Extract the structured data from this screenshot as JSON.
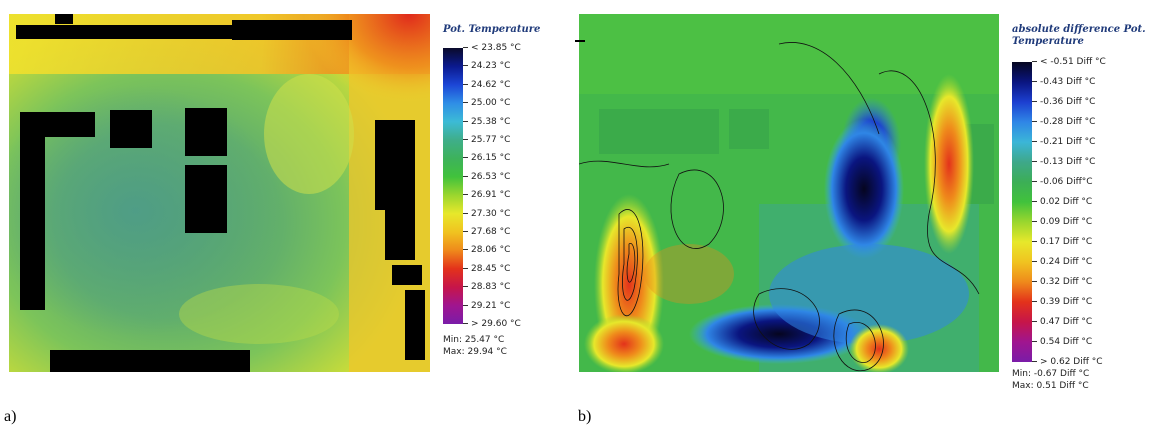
{
  "panel_a": {
    "legend_title": "Pot. Temperature",
    "ticks": [
      "< 23.85 °C",
      "24.23 °C",
      "24.62 °C",
      "25.00 °C",
      "25.38 °C",
      "25.77 °C",
      "26.15 °C",
      "26.53 °C",
      "26.91 °C",
      "27.30 °C",
      "27.68 °C",
      "28.06 °C",
      "28.45 °C",
      "28.83 °C",
      "29.21 °C",
      "> 29.60 °C"
    ],
    "min_label": "Min: 25.47 °C",
    "max_label": "Max: 29.94 °C",
    "caption": "a)",
    "scale_colors": [
      "#0a0a2a",
      "#0b1a8f",
      "#1c46d6",
      "#2f8ee6",
      "#3cbbd6",
      "#3fae8a",
      "#3db25b",
      "#41c23c",
      "#9ad62e",
      "#e7e82b",
      "#f0c320",
      "#ef8a1b",
      "#e3321b",
      "#c6154a",
      "#a0158f",
      "#7a1ca8"
    ]
  },
  "panel_b": {
    "legend_title": "absolute difference Pot. Temperature",
    "ticks": [
      "< -0.51 Diff °C",
      "-0.43 Diff °C",
      "-0.36 Diff °C",
      "-0.28 Diff °C",
      "-0.21 Diff °C",
      "-0.13 Diff °C",
      "-0.06 Diff°C",
      "0.02 Diff °C",
      "0.09 Diff °C",
      "0.17 Diff °C",
      "0.24 Diff °C",
      "0.32 Diff °C",
      "0.39 Diff °C",
      "0.47 Diff °C",
      "0.54 Diff °C",
      "> 0.62 Diff °C"
    ],
    "min_label": "Min: -0.67 Diff °C",
    "max_label": "Max: 0.51 Diff °C",
    "caption": "b)",
    "scale_colors": [
      "#05051f",
      "#0a1580",
      "#1c3fd0",
      "#2f86e6",
      "#3bb6d8",
      "#3ea88a",
      "#3cae56",
      "#41c23c",
      "#9ad62e",
      "#e7e82b",
      "#f0c320",
      "#ef8a1b",
      "#e3321b",
      "#c6154a",
      "#a0158f",
      "#7a1ca8"
    ]
  }
}
